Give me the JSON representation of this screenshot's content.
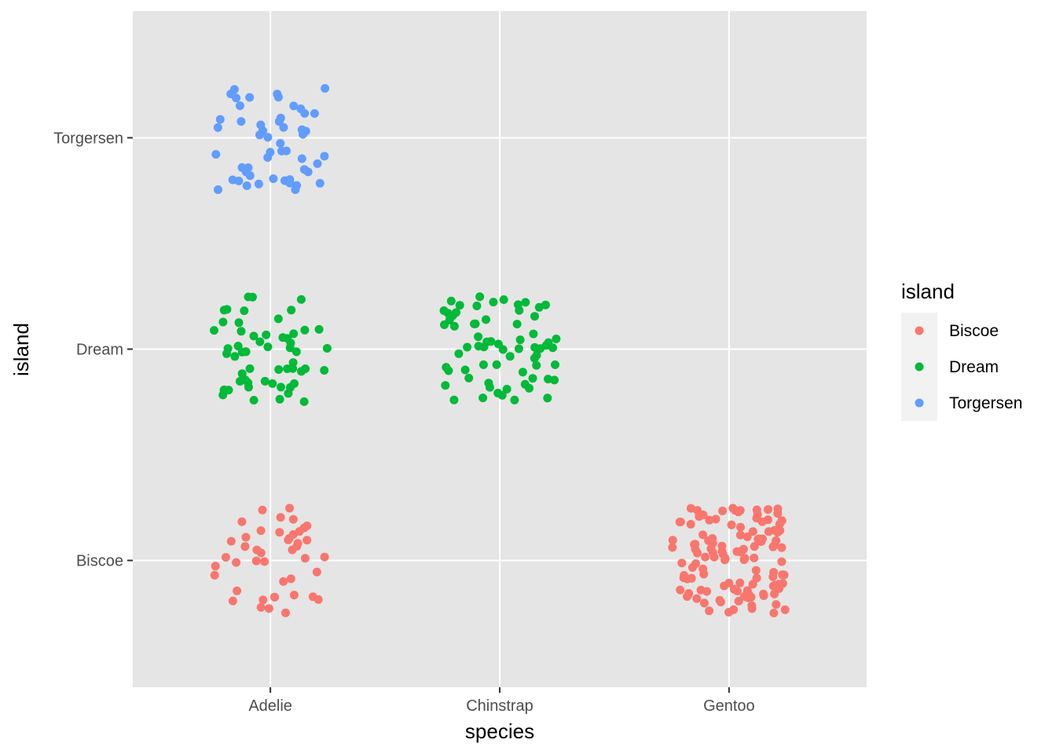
{
  "chart_data": {
    "type": "scatter",
    "title": "",
    "xlabel": "species",
    "ylabel": "island",
    "x_categories": [
      "Adelie",
      "Chinstrap",
      "Gentoo"
    ],
    "y_categories": [
      "Biscoe",
      "Dream",
      "Torgersen"
    ],
    "jitter": 0.25,
    "grid": true,
    "legend": {
      "title": "island",
      "position": "right",
      "entries": [
        "Biscoe",
        "Dream",
        "Torgersen"
      ]
    },
    "colors": {
      "Biscoe": "#F8766D",
      "Dream": "#00BA38",
      "Torgersen": "#619CFF",
      "panel_background": "#E5E5E5",
      "grid": "#FFFFFF"
    },
    "groups": [
      {
        "species": "Adelie",
        "island": "Biscoe",
        "count": 44
      },
      {
        "species": "Adelie",
        "island": "Dream",
        "count": 56
      },
      {
        "species": "Adelie",
        "island": "Torgersen",
        "count": 52
      },
      {
        "species": "Chinstrap",
        "island": "Dream",
        "count": 68
      },
      {
        "species": "Gentoo",
        "island": "Biscoe",
        "count": 124
      }
    ]
  }
}
